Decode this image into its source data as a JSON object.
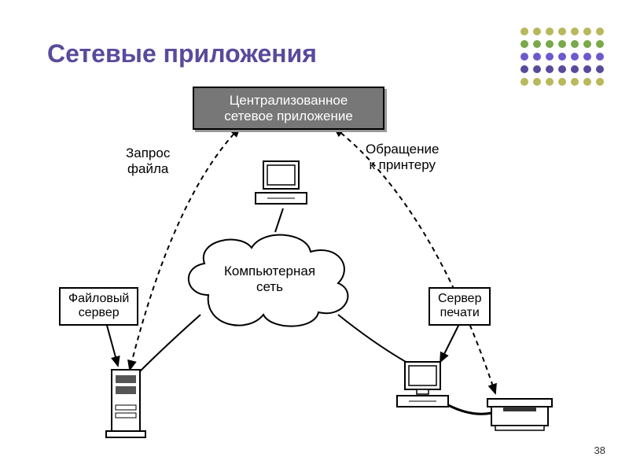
{
  "title": "Сетевые приложения",
  "page_number": "38",
  "decorative_dots": {
    "rows": 5,
    "cols": 7,
    "colors": [
      "#b8b85c",
      "#b8b85c",
      "#b8b85c",
      "#b8b85c",
      "#b8b85c",
      "#b8b85c",
      "#b8b85c",
      "#7aa84a",
      "#7aa84a",
      "#7aa84a",
      "#7aa84a",
      "#7aa84a",
      "#7aa84a",
      "#7aa84a",
      "#6a5acd",
      "#6a5acd",
      "#6a5acd",
      "#6a5acd",
      "#6a5acd",
      "#6a5acd",
      "#6a5acd",
      "#5a4a9c",
      "#5a4a9c",
      "#5a4a9c",
      "#5a4a9c",
      "#5a4a9c",
      "#5a4a9c",
      "#5a4a9c",
      "#b8b85c",
      "#b8b85c",
      "#b8b85c",
      "#b8b85c",
      "#b8b85c",
      "#b8b85c",
      "#b8b85c"
    ]
  },
  "diagram": {
    "type": "network",
    "background_color": "#ffffff",
    "stroke_color": "#000000",
    "dash_pattern": "6,5",
    "font_size": 17,
    "title_color": "#5a4a9c",
    "nodes": {
      "central_app": {
        "label": "Централизованное\nсетевое приложение",
        "kind": "box-dark"
      },
      "request": {
        "label": "Запрос\nфайла",
        "kind": "text"
      },
      "to_printer": {
        "label": "Обращение\nк принтеру",
        "kind": "text"
      },
      "client_pc": {
        "label": "",
        "kind": "computer"
      },
      "cloud": {
        "label": "Компьютерная\nсеть",
        "kind": "cloud"
      },
      "file_server_box": {
        "label": "Файловый\nсервер",
        "kind": "box"
      },
      "print_server_box": {
        "label": "Сервер\nпечати",
        "kind": "box"
      },
      "file_server": {
        "label": "",
        "kind": "tower"
      },
      "print_pc": {
        "label": "",
        "kind": "computer"
      },
      "printer": {
        "label": "",
        "kind": "printer"
      }
    },
    "edges": [
      {
        "from": "central_app",
        "to": "file_server",
        "style": "dashed",
        "bidir": true
      },
      {
        "from": "central_app",
        "to": "printer",
        "style": "dashed",
        "bidir": true
      },
      {
        "from": "client_pc",
        "to": "cloud",
        "style": "solid"
      },
      {
        "from": "cloud",
        "to": "file_server",
        "style": "solid"
      },
      {
        "from": "cloud",
        "to": "print_pc",
        "style": "solid"
      },
      {
        "from": "print_pc",
        "to": "printer",
        "style": "solid"
      },
      {
        "from": "file_server_box",
        "to": "file_server",
        "style": "arrow"
      },
      {
        "from": "print_server_box",
        "to": "print_pc",
        "style": "arrow"
      }
    ]
  }
}
